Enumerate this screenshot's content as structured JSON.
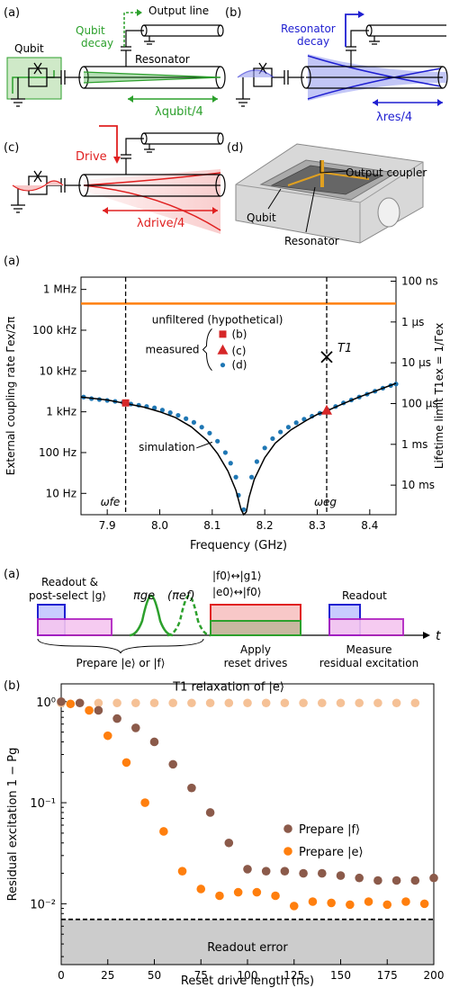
{
  "panel_labels": {
    "fig1_a": "(a)",
    "fig1_b": "(b)",
    "fig1_c": "(c)",
    "fig1_d": "(d)",
    "fig2_a": "(a)",
    "fig3_a": "(a)",
    "fig3_b": "(b)"
  },
  "schematic": {
    "qubit": "Qubit",
    "qubit_decay_1": "Qubit",
    "qubit_decay_2": "decay",
    "output_line": "Output line",
    "resonator": "Resonator",
    "lambda_qubit": "λqubit/4",
    "resonator_decay_1": "Resonator",
    "resonator_decay_2": "decay",
    "lambda_res": "λres/4",
    "drive": "Drive",
    "lambda_drive": "λdrive/4",
    "output_coupler": "Output coupler",
    "qubit_3d": "Qubit",
    "resonator_3d": "Resonator",
    "colors": {
      "qubit": "#2ca02c",
      "resonator": "#1f1fd1",
      "drive": "#e02020",
      "coupler": "#e0a020"
    }
  },
  "coupling_chart": {
    "chart_data": {
      "type": "line",
      "xlabel": "Frequency (GHz)",
      "ylabel": "External coupling rate Γex/2π",
      "ylabel_right": "Lifetime limit T1ex = 1/Γex",
      "xlim": [
        7.85,
        8.45
      ],
      "ylim_log_hz": [
        3,
        2000000
      ],
      "x_ticks": [
        "7.9",
        "8.0",
        "8.1",
        "8.2",
        "8.3",
        "8.4"
      ],
      "y_ticks_left": [
        "1 MHz",
        "100 kHz",
        "10 kHz",
        "1 kHz",
        "100 Hz",
        "10 Hz"
      ],
      "y_ticks_right": [
        "100 ns",
        "1 μs",
        "10 μs",
        "100 μs",
        "1 ms",
        "10 ms"
      ],
      "unfiltered_label": "unfiltered (hypothetical)",
      "unfiltered_value_hz": 450000,
      "measured_label": "measured",
      "legend": [
        "(b)",
        "(c)",
        "(d)"
      ],
      "simulation_label": "simulation",
      "t1_label": "T1",
      "omega_fe": "ωfe",
      "omega_eg": "ωeg",
      "omega_fe_ghz": 7.935,
      "omega_eg_ghz": 8.318,
      "point_b": [
        7.935,
        1650
      ],
      "point_c": [
        8.318,
        1100
      ],
      "t1_marker": [
        8.318,
        22000
      ],
      "simulation": [
        [
          7.85,
          2300
        ],
        [
          7.9,
          1950
        ],
        [
          7.935,
          1600
        ],
        [
          7.97,
          1300
        ],
        [
          8.0,
          1000
        ],
        [
          8.03,
          720
        ],
        [
          8.06,
          430
        ],
        [
          8.09,
          200
        ],
        [
          8.11,
          95
        ],
        [
          8.13,
          35
        ],
        [
          8.145,
          12
        ],
        [
          8.155,
          4
        ],
        [
          8.16,
          3
        ],
        [
          8.165,
          3.5
        ],
        [
          8.17,
          8
        ],
        [
          8.18,
          22
        ],
        [
          8.2,
          75
        ],
        [
          8.22,
          170
        ],
        [
          8.25,
          360
        ],
        [
          8.28,
          620
        ],
        [
          8.3,
          860
        ],
        [
          8.318,
          1050
        ],
        [
          8.35,
          1600
        ],
        [
          8.38,
          2300
        ],
        [
          8.41,
          3200
        ],
        [
          8.45,
          5000
        ]
      ],
      "dots": [
        [
          7.855,
          2300
        ],
        [
          7.87,
          2100
        ],
        [
          7.885,
          2000
        ],
        [
          7.9,
          1900
        ],
        [
          7.915,
          1800
        ],
        [
          7.93,
          1700
        ],
        [
          7.945,
          1550
        ],
        [
          7.96,
          1450
        ],
        [
          7.975,
          1350
        ],
        [
          7.99,
          1250
        ],
        [
          8.005,
          1100
        ],
        [
          8.02,
          950
        ],
        [
          8.035,
          820
        ],
        [
          8.05,
          680
        ],
        [
          8.065,
          550
        ],
        [
          8.08,
          420
        ],
        [
          8.095,
          300
        ],
        [
          8.11,
          190
        ],
        [
          8.125,
          100
        ],
        [
          8.135,
          55
        ],
        [
          8.145,
          25
        ],
        [
          8.15,
          9
        ],
        [
          8.16,
          4
        ],
        [
          8.175,
          25
        ],
        [
          8.185,
          60
        ],
        [
          8.2,
          130
        ],
        [
          8.215,
          220
        ],
        [
          8.23,
          320
        ],
        [
          8.245,
          420
        ],
        [
          8.26,
          540
        ],
        [
          8.275,
          660
        ],
        [
          8.29,
          780
        ],
        [
          8.305,
          920
        ],
        [
          8.32,
          1100
        ],
        [
          8.335,
          1350
        ],
        [
          8.35,
          1650
        ],
        [
          8.365,
          1950
        ],
        [
          8.38,
          2300
        ],
        [
          8.395,
          2700
        ],
        [
          8.41,
          3200
        ],
        [
          8.425,
          3800
        ],
        [
          8.44,
          4400
        ],
        [
          8.45,
          4800
        ]
      ]
    }
  },
  "sequence": {
    "readout_postselect_1": "Readout &",
    "readout_postselect_2": "post-select |g⟩",
    "pi_ge": "πge",
    "pi_ef": "(πef)",
    "reset_f0_g1": "|f0⟩↔|g1⟩",
    "reset_e0_f0": "|e0⟩↔|f0⟩",
    "readout": "Readout",
    "t_axis": "t",
    "prepare": "Prepare |e⟩ or |f⟩",
    "apply_1": "Apply",
    "apply_2": "reset drives",
    "measure_1": "Measure",
    "measure_2": "residual excitation"
  },
  "residual_chart": {
    "chart_data": {
      "type": "scatter",
      "xlabel": "Reset drive length (ns)",
      "ylabel": "Residual excitation 1 − Pg",
      "xlim": [
        0,
        200
      ],
      "ylim": [
        0.0025,
        1.5
      ],
      "x_ticks": [
        "0",
        "25",
        "50",
        "75",
        "100",
        "125",
        "150",
        "175",
        "200"
      ],
      "y_ticks": [
        "10⁰",
        "10⁻¹",
        "10⁻²"
      ],
      "t1_label": "T1 relaxation of |e⟩",
      "readout_error_label": "Readout error",
      "readout_error": 0.007,
      "series": [
        {
          "name": "Prepare |f⟩",
          "color": "#8b5a4a",
          "x": [
            0,
            10,
            20,
            30,
            40,
            50,
            60,
            70,
            80,
            90,
            100,
            110,
            120,
            130,
            140,
            150,
            160,
            170,
            180,
            190,
            200
          ],
          "y": [
            1.0,
            0.97,
            0.82,
            0.68,
            0.55,
            0.4,
            0.24,
            0.14,
            0.08,
            0.04,
            0.022,
            0.021,
            0.021,
            0.02,
            0.02,
            0.019,
            0.018,
            0.017,
            0.017,
            0.017,
            0.018
          ]
        },
        {
          "name": "Prepare |e⟩",
          "color": "#ff7f0e",
          "x": [
            5,
            15,
            25,
            35,
            45,
            55,
            65,
            75,
            85,
            95,
            105,
            115,
            125,
            135,
            145,
            155,
            165,
            175,
            185,
            195
          ],
          "y": [
            0.95,
            0.82,
            0.46,
            0.25,
            0.1,
            0.052,
            0.021,
            0.014,
            0.012,
            0.013,
            0.013,
            0.012,
            0.0095,
            0.0105,
            0.0102,
            0.0098,
            0.0105,
            0.0098,
            0.0105,
            0.01
          ]
        },
        {
          "name": "T1 relaxation of |e⟩",
          "color": "#f5c196",
          "x": [
            0,
            10,
            20,
            30,
            40,
            50,
            60,
            70,
            80,
            90,
            100,
            110,
            120,
            130,
            140,
            150,
            160,
            170,
            180,
            190
          ],
          "y": [
            0.97,
            0.97,
            0.97,
            0.97,
            0.97,
            0.97,
            0.97,
            0.97,
            0.97,
            0.97,
            0.97,
            0.97,
            0.97,
            0.97,
            0.97,
            0.97,
            0.97,
            0.97,
            0.97,
            0.97
          ]
        }
      ],
      "legend": [
        "Prepare |f⟩",
        "Prepare |e⟩"
      ]
    }
  }
}
